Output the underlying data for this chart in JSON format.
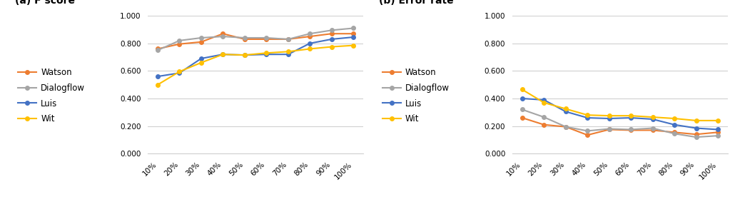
{
  "x_labels": [
    "10%",
    "20%",
    "30%",
    "40%",
    "50%",
    "60%",
    "70%",
    "80%",
    "90%",
    "100%"
  ],
  "fscore": {
    "Watson": [
      0.76,
      0.795,
      0.81,
      0.87,
      0.83,
      0.83,
      0.83,
      0.85,
      0.87,
      0.87
    ],
    "Dialogflow": [
      0.75,
      0.82,
      0.84,
      0.85,
      0.84,
      0.84,
      0.83,
      0.87,
      0.895,
      0.91
    ],
    "Luis": [
      0.56,
      0.585,
      0.69,
      0.72,
      0.715,
      0.72,
      0.72,
      0.8,
      0.83,
      0.845
    ],
    "Wit": [
      0.5,
      0.595,
      0.66,
      0.72,
      0.715,
      0.73,
      0.74,
      0.76,
      0.775,
      0.785
    ]
  },
  "error": {
    "Watson": [
      0.26,
      0.21,
      0.195,
      0.135,
      0.175,
      0.17,
      0.17,
      0.155,
      0.14,
      0.155
    ],
    "Dialogflow": [
      0.32,
      0.265,
      0.195,
      0.165,
      0.18,
      0.175,
      0.185,
      0.145,
      0.12,
      0.13
    ],
    "Luis": [
      0.4,
      0.39,
      0.305,
      0.26,
      0.255,
      0.26,
      0.25,
      0.21,
      0.185,
      0.175
    ],
    "Wit": [
      0.465,
      0.37,
      0.325,
      0.28,
      0.275,
      0.275,
      0.265,
      0.255,
      0.24,
      0.24
    ]
  },
  "colors": {
    "Watson": "#ED7D31",
    "Dialogflow": "#A5A5A5",
    "Luis": "#4472C4",
    "Wit": "#FFC000"
  },
  "title_a": "(a) F score",
  "title_b": "(b) Error rate",
  "ylim": [
    0.0,
    1.0
  ],
  "yticks": [
    0.0,
    0.2,
    0.4,
    0.6,
    0.8,
    1.0
  ],
  "ytick_labels": [
    "0.000",
    "0.200",
    "0.400",
    "0.600",
    "0.800",
    "1.000"
  ],
  "legend_order": [
    "Watson",
    "Dialogflow",
    "Luis",
    "Wit"
  ],
  "marker": "o",
  "linewidth": 1.5,
  "markersize": 4,
  "title_fontsize": 10,
  "legend_fontsize": 8.5,
  "tick_fontsize": 7.5,
  "background_color": "#ffffff"
}
